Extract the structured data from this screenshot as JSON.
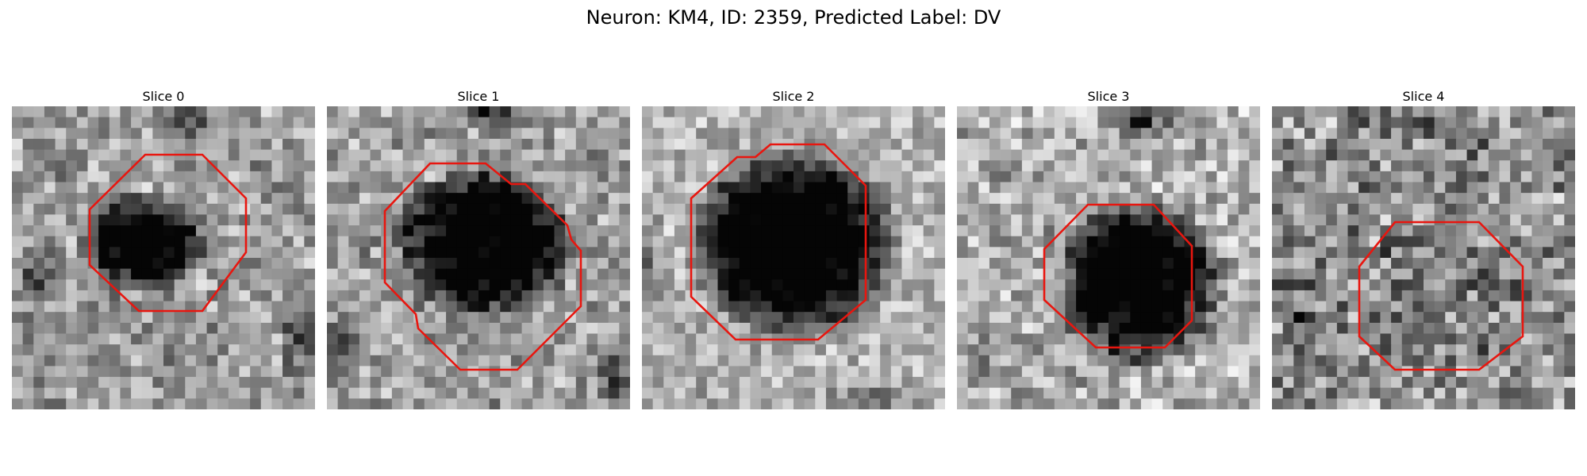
{
  "figure": {
    "title": "Neuron: KM4, ID: 2359, Predicted Label: DV"
  },
  "colors": {
    "contour": "#e8160f",
    "background": "#ffffff"
  },
  "slices": [
    {
      "label": "Slice 0"
    },
    {
      "label": "Slice 1"
    },
    {
      "label": "Slice 2"
    },
    {
      "label": "Slice 3"
    },
    {
      "label": "Slice 4"
    }
  ]
}
